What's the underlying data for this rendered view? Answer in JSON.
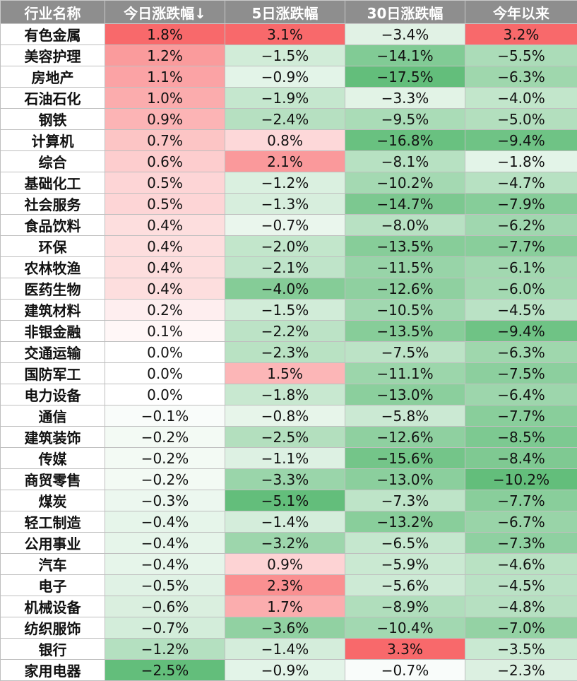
{
  "table": {
    "headers": [
      "行业名称",
      "今日涨跌幅↓",
      "5日涨跌幅",
      "30日涨跌幅",
      "今年以来"
    ],
    "colors": {
      "positive": "#f8696b",
      "negative": "#63be7b",
      "neutral": "#ffffff"
    },
    "rows": [
      {
        "name": "有色金属",
        "values": [
          "1.8%",
          "3.1%",
          "−3.4%",
          "3.2%"
        ]
      },
      {
        "name": "美容护理",
        "values": [
          "1.2%",
          "−1.5%",
          "−14.1%",
          "−5.5%"
        ]
      },
      {
        "name": "房地产",
        "values": [
          "1.1%",
          "−0.9%",
          "−17.5%",
          "−6.3%"
        ]
      },
      {
        "name": "石油石化",
        "values": [
          "1.0%",
          "−1.9%",
          "−3.3%",
          "−4.0%"
        ]
      },
      {
        "name": "钢铁",
        "values": [
          "0.9%",
          "−2.4%",
          "−9.5%",
          "−5.0%"
        ]
      },
      {
        "name": "计算机",
        "values": [
          "0.7%",
          "0.8%",
          "−16.8%",
          "−9.4%"
        ]
      },
      {
        "name": "综合",
        "values": [
          "0.6%",
          "2.1%",
          "−8.1%",
          "−1.8%"
        ]
      },
      {
        "name": "基础化工",
        "values": [
          "0.5%",
          "−1.2%",
          "−10.2%",
          "−4.7%"
        ]
      },
      {
        "name": "社会服务",
        "values": [
          "0.5%",
          "−1.3%",
          "−14.7%",
          "−7.9%"
        ]
      },
      {
        "name": "食品饮料",
        "values": [
          "0.4%",
          "−0.7%",
          "−8.0%",
          "−6.2%"
        ]
      },
      {
        "name": "环保",
        "values": [
          "0.4%",
          "−2.0%",
          "−13.5%",
          "−7.7%"
        ]
      },
      {
        "name": "农林牧渔",
        "values": [
          "0.4%",
          "−2.1%",
          "−11.5%",
          "−6.1%"
        ]
      },
      {
        "name": "医药生物",
        "values": [
          "0.4%",
          "−4.0%",
          "−12.6%",
          "−6.0%"
        ]
      },
      {
        "name": "建筑材料",
        "values": [
          "0.2%",
          "−1.5%",
          "−10.5%",
          "−4.5%"
        ]
      },
      {
        "name": "非银金融",
        "values": [
          "0.1%",
          "−2.2%",
          "−13.5%",
          "−9.4%"
        ]
      },
      {
        "name": "交通运输",
        "values": [
          "0.0%",
          "−2.3%",
          "−7.5%",
          "−6.3%"
        ]
      },
      {
        "name": "国防军工",
        "values": [
          "0.0%",
          "1.5%",
          "−11.1%",
          "−7.5%"
        ]
      },
      {
        "name": "电力设备",
        "values": [
          "0.0%",
          "−1.8%",
          "−13.0%",
          "−6.4%"
        ]
      },
      {
        "name": "通信",
        "values": [
          "−0.1%",
          "−0.8%",
          "−5.8%",
          "−7.7%"
        ]
      },
      {
        "name": "建筑装饰",
        "values": [
          "−0.2%",
          "−2.5%",
          "−12.6%",
          "−8.5%"
        ]
      },
      {
        "name": "传媒",
        "values": [
          "−0.2%",
          "−1.1%",
          "−15.6%",
          "−8.4%"
        ]
      },
      {
        "name": "商贸零售",
        "values": [
          "−0.2%",
          "−3.3%",
          "−13.0%",
          "−10.2%"
        ]
      },
      {
        "name": "煤炭",
        "values": [
          "−0.3%",
          "−5.1%",
          "−7.3%",
          "−7.7%"
        ]
      },
      {
        "name": "轻工制造",
        "values": [
          "−0.4%",
          "−1.4%",
          "−13.2%",
          "−6.7%"
        ]
      },
      {
        "name": "公用事业",
        "values": [
          "−0.4%",
          "−3.2%",
          "−6.5%",
          "−7.3%"
        ]
      },
      {
        "name": "汽车",
        "values": [
          "−0.4%",
          "0.9%",
          "−5.9%",
          "−4.6%"
        ]
      },
      {
        "name": "电子",
        "values": [
          "−0.5%",
          "2.3%",
          "−5.6%",
          "−4.5%"
        ]
      },
      {
        "name": "机械设备",
        "values": [
          "−0.6%",
          "1.7%",
          "−8.9%",
          "−4.8%"
        ]
      },
      {
        "name": "纺织服饰",
        "values": [
          "−0.7%",
          "−3.6%",
          "−10.4%",
          "−7.0%"
        ]
      },
      {
        "name": "银行",
        "values": [
          "−1.2%",
          "−1.4%",
          "3.3%",
          "−3.5%"
        ]
      },
      {
        "name": "家用电器",
        "values": [
          "−2.5%",
          "−0.9%",
          "−0.7%",
          "−2.3%"
        ]
      }
    ]
  }
}
